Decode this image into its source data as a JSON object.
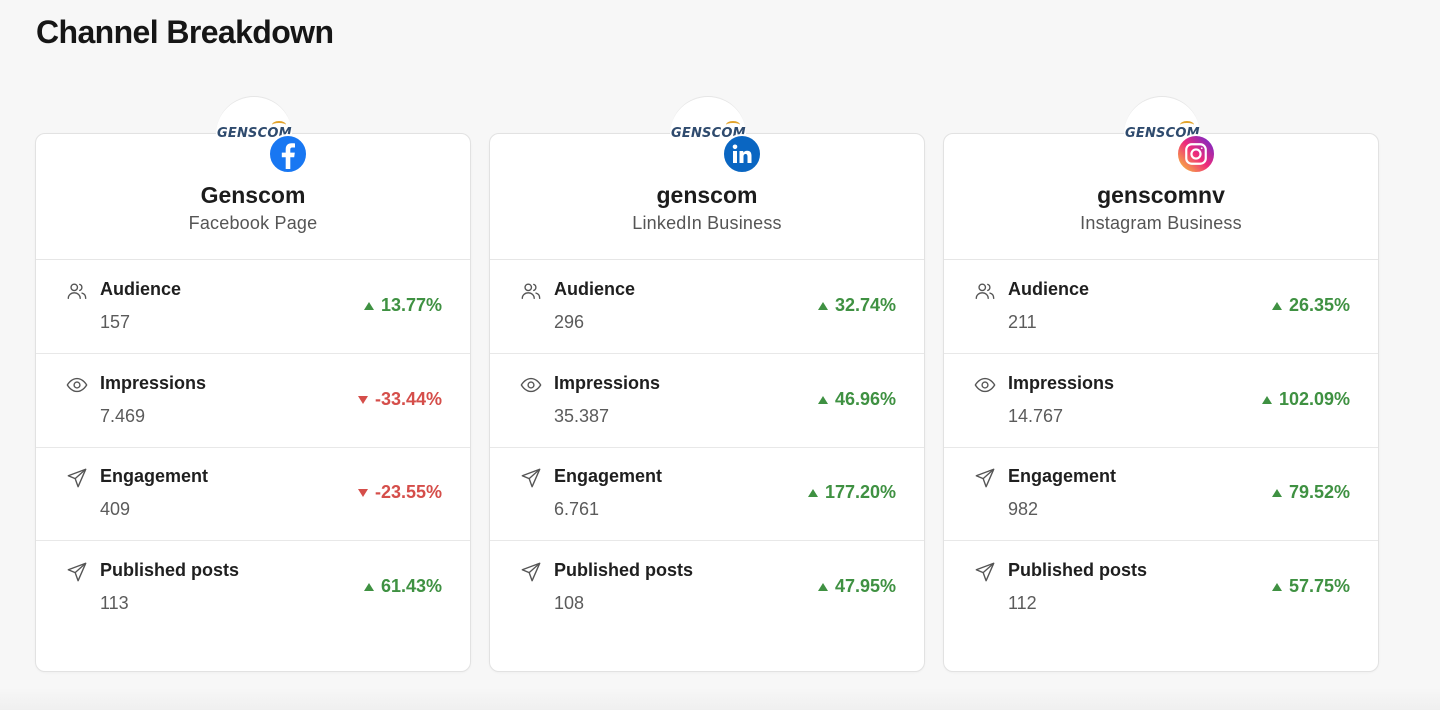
{
  "page": {
    "title": "Channel Breakdown"
  },
  "channels": [
    {
      "logo_text": "GENSCOM",
      "platform_icon": "facebook-icon",
      "name": "Genscom",
      "type": "Facebook Page",
      "metrics": [
        {
          "icon": "users-icon",
          "label": "Audience",
          "value": "157",
          "change": "13.77%",
          "direction": "up"
        },
        {
          "icon": "eye-icon",
          "label": "Impressions",
          "value": "7.469",
          "change": "-33.44%",
          "direction": "down"
        },
        {
          "icon": "paper-plane-icon",
          "label": "Engagement",
          "value": "409",
          "change": "-23.55%",
          "direction": "down"
        },
        {
          "icon": "paper-plane-icon",
          "label": "Published posts",
          "value": "113",
          "change": "61.43%",
          "direction": "up"
        }
      ]
    },
    {
      "logo_text": "GENSCOM",
      "platform_icon": "linkedin-icon",
      "name": "genscom",
      "type": "LinkedIn Business",
      "metrics": [
        {
          "icon": "users-icon",
          "label": "Audience",
          "value": "296",
          "change": "32.74%",
          "direction": "up"
        },
        {
          "icon": "eye-icon",
          "label": "Impressions",
          "value": "35.387",
          "change": "46.96%",
          "direction": "up"
        },
        {
          "icon": "paper-plane-icon",
          "label": "Engagement",
          "value": "6.761",
          "change": "177.20%",
          "direction": "up"
        },
        {
          "icon": "paper-plane-icon",
          "label": "Published posts",
          "value": "108",
          "change": "47.95%",
          "direction": "up"
        }
      ]
    },
    {
      "logo_text": "GENSCOM",
      "platform_icon": "instagram-icon",
      "name": "genscomnv",
      "type": "Instagram Business",
      "metrics": [
        {
          "icon": "users-icon",
          "label": "Audience",
          "value": "211",
          "change": "26.35%",
          "direction": "up"
        },
        {
          "icon": "eye-icon",
          "label": "Impressions",
          "value": "14.767",
          "change": "102.09%",
          "direction": "up"
        },
        {
          "icon": "paper-plane-icon",
          "label": "Engagement",
          "value": "982",
          "change": "79.52%",
          "direction": "up"
        },
        {
          "icon": "paper-plane-icon",
          "label": "Published posts",
          "value": "112",
          "change": "57.75%",
          "direction": "up"
        }
      ]
    }
  ],
  "colors": {
    "positive": "#3f9142",
    "negative": "#d54e4a",
    "facebook": "#1877f2",
    "linkedin": "#0a66c2"
  }
}
